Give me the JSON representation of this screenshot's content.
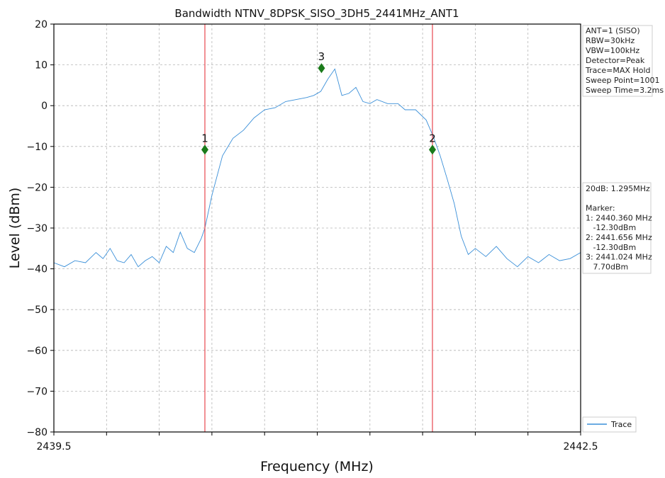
{
  "chart_data": {
    "type": "line",
    "title": "Bandwidth NTNV_8DPSK_SISO_3DH5_2441MHz_ANT1",
    "xlabel": "Frequency (MHz)",
    "ylabel": "Level (dBm)",
    "xlim": [
      2439.5,
      2442.5
    ],
    "ylim": [
      -80,
      20
    ],
    "x_tick_labels": [
      {
        "value": 2439.5,
        "label": "2439.5"
      },
      {
        "value": 2442.5,
        "label": "2442.5"
      }
    ],
    "x_minor_ticks": [
      2439.8,
      2440.1,
      2440.4,
      2440.7,
      2441.0,
      2441.3,
      2441.6,
      2441.9,
      2442.2
    ],
    "y_ticks": [
      20,
      10,
      0,
      -10,
      -20,
      -30,
      -40,
      -50,
      -60,
      -70,
      -80
    ],
    "y_tick_labels": [
      "20",
      "10",
      "0",
      "−10",
      "−20",
      "−30",
      "−40",
      "−50",
      "−60",
      "−70",
      "−80"
    ],
    "grid": true,
    "legend_position": "bottom-right",
    "series": [
      {
        "name": "Trace",
        "color": "#3a8fd8",
        "x": [
          2439.5,
          2439.56,
          2439.62,
          2439.68,
          2439.74,
          2439.78,
          2439.82,
          2439.86,
          2439.9,
          2439.94,
          2439.98,
          2440.02,
          2440.06,
          2440.1,
          2440.14,
          2440.18,
          2440.22,
          2440.26,
          2440.3,
          2440.34,
          2440.36,
          2440.4,
          2440.46,
          2440.52,
          2440.58,
          2440.64,
          2440.7,
          2440.76,
          2440.82,
          2440.88,
          2440.94,
          2440.98,
          2441.02,
          2441.06,
          2441.1,
          2441.14,
          2441.18,
          2441.22,
          2441.26,
          2441.3,
          2441.34,
          2441.4,
          2441.46,
          2441.5,
          2441.56,
          2441.62,
          2441.66,
          2441.7,
          2441.74,
          2441.78,
          2441.82,
          2441.86,
          2441.9,
          2441.96,
          2442.02,
          2442.08,
          2442.14,
          2442.2,
          2442.26,
          2442.32,
          2442.38,
          2442.44,
          2442.5
        ],
        "y": [
          -38.5,
          -39.5,
          -38.0,
          -38.5,
          -36.0,
          -37.5,
          -35.0,
          -38.0,
          -38.5,
          -36.5,
          -39.5,
          -38.0,
          -37.0,
          -38.5,
          -34.5,
          -36.0,
          -31.0,
          -35.0,
          -36.0,
          -32.5,
          -30.0,
          -22.0,
          -12.3,
          -8.0,
          -6.0,
          -3.0,
          -1.0,
          -0.5,
          1.0,
          1.5,
          2.0,
          2.5,
          3.5,
          6.5,
          9.0,
          2.5,
          3.0,
          4.5,
          1.0,
          0.5,
          1.5,
          0.5,
          0.5,
          -1.0,
          -1.0,
          -3.5,
          -7.5,
          -12.3,
          -18.0,
          -24.0,
          -32.0,
          -36.5,
          -35.0,
          -37.0,
          -34.5,
          -37.5,
          -39.5,
          -37.0,
          -38.5,
          -36.5,
          -38.0,
          -37.5,
          -36.0
        ]
      }
    ],
    "vertical_lines": [
      {
        "x": 2440.36,
        "color": "#e8474f"
      },
      {
        "x": 2441.656,
        "color": "#e8474f"
      }
    ],
    "markers": [
      {
        "label": "1",
        "x": 2440.36,
        "y": -10.8,
        "color": "#1a7a1a"
      },
      {
        "label": "2",
        "x": 2441.656,
        "y": -10.8,
        "color": "#1a7a1a"
      },
      {
        "label": "3",
        "x": 2441.024,
        "y": 9.2,
        "color": "#1a7a1a"
      }
    ]
  },
  "settings_box": {
    "lines": [
      "ANT=1 (SISO)",
      "RBW=30kHz",
      "VBW=100kHz",
      "Detector=Peak",
      "Trace=MAX Hold",
      "Sweep Point=1001",
      "Sweep Time=3.2ms"
    ]
  },
  "results_box": {
    "lines": [
      "20dB: 1.295MHz",
      "",
      "Marker:",
      "1: 2440.360 MHz",
      "   -12.30dBm",
      "2: 2441.656 MHz",
      "   -12.30dBm",
      "3: 2441.024 MHz",
      "   7.70dBm"
    ]
  },
  "legend": {
    "label": "Trace"
  }
}
